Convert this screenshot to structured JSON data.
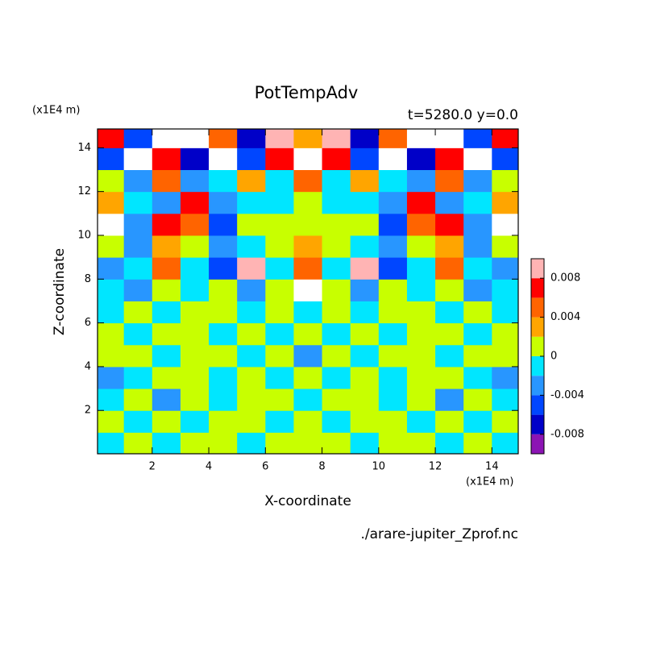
{
  "chart_data": {
    "type": "contour",
    "title": "PotTempAdv",
    "subtitle": "t=5280.0 y=0.0",
    "x_label": "X-coordinate",
    "y_label": "Z-coordinate",
    "x_unit": "(x1E4 m)",
    "y_unit": "(x1E4 m)",
    "source": "./arare-jupiter_Zprof.nc",
    "xlim": [
      0.07,
      14.93
    ],
    "ylim": [
      0.02,
      14.86
    ],
    "xticks": [
      2,
      4,
      6,
      8,
      10,
      12,
      14
    ],
    "yticks": [
      2,
      4,
      6,
      8,
      10,
      12,
      14
    ],
    "x": [
      0.5,
      1.5,
      2.5,
      3.5,
      4.5,
      5.5,
      6.5,
      7.5,
      8.5,
      9.5,
      10.5,
      11.5,
      12.5,
      13.5,
      14.5
    ],
    "y": [
      0.5,
      1.5,
      2.5,
      3.5,
      4.5,
      5.5,
      6.5,
      7.5,
      8.5,
      9.5,
      10.5,
      11.5,
      12.5,
      13.5,
      14.5
    ],
    "values": [
      [
        -0.001,
        0.001,
        -0.001,
        0.001,
        0.001,
        -0.001,
        0.001,
        0.001,
        0.001,
        -0.001,
        0.001,
        0.001,
        -0.001,
        0.001,
        -0.001
      ],
      [
        0.001,
        -0.001,
        0.001,
        -0.001,
        0.001,
        0.001,
        -0.001,
        0.001,
        -0.001,
        0.001,
        0.001,
        -0.001,
        0.001,
        -0.001,
        0.001
      ],
      [
        -0.001,
        0.001,
        -0.003,
        0.001,
        -0.001,
        0.001,
        0.001,
        -0.001,
        0.001,
        0.001,
        -0.001,
        0.001,
        -0.003,
        0.001,
        -0.001
      ],
      [
        -0.003,
        -0.001,
        0.001,
        0.001,
        -0.001,
        0.001,
        -0.001,
        0.001,
        -0.001,
        0.001,
        -0.001,
        0.001,
        0.001,
        -0.001,
        -0.003
      ],
      [
        0.001,
        0.001,
        -0.001,
        0.001,
        0.001,
        -0.001,
        0.001,
        -0.003,
        0.001,
        -0.001,
        0.001,
        0.001,
        -0.001,
        0.001,
        0.001
      ],
      [
        0.001,
        -0.001,
        0.001,
        0.001,
        -0.001,
        0.001,
        -0.001,
        0.001,
        -0.001,
        0.001,
        -0.001,
        0.001,
        0.001,
        -0.001,
        0.001
      ],
      [
        -0.001,
        0.001,
        -0.001,
        0.001,
        0.001,
        -0.001,
        0.001,
        -0.001,
        0.001,
        -0.001,
        0.001,
        0.001,
        -0.001,
        0.001,
        -0.001
      ],
      [
        -0.001,
        -0.003,
        0.001,
        -0.001,
        0.001,
        -0.003,
        0.001,
        0.012,
        0.001,
        -0.003,
        0.001,
        -0.001,
        0.001,
        -0.003,
        -0.001
      ],
      [
        -0.003,
        -0.001,
        0.005,
        -0.001,
        -0.005,
        0.009,
        -0.001,
        0.005,
        -0.001,
        0.009,
        -0.005,
        -0.001,
        0.005,
        -0.001,
        -0.003
      ],
      [
        0.001,
        -0.003,
        0.003,
        0.001,
        -0.003,
        -0.001,
        0.001,
        0.003,
        0.001,
        -0.001,
        -0.003,
        0.001,
        0.003,
        -0.003,
        0.001
      ],
      [
        0.012,
        -0.003,
        0.007,
        0.005,
        -0.005,
        0.001,
        0.001,
        0.001,
        0.001,
        0.001,
        -0.005,
        0.005,
        0.007,
        -0.003,
        0.012
      ],
      [
        0.003,
        -0.001,
        -0.003,
        0.007,
        -0.003,
        -0.001,
        -0.001,
        0.001,
        -0.001,
        -0.001,
        -0.003,
        0.007,
        -0.003,
        -0.001,
        0.003
      ],
      [
        0.001,
        -0.003,
        0.005,
        -0.003,
        -0.001,
        0.003,
        -0.001,
        0.005,
        -0.001,
        0.003,
        -0.001,
        -0.003,
        0.005,
        -0.003,
        0.001
      ],
      [
        -0.005,
        0.012,
        0.007,
        -0.007,
        0.012,
        -0.005,
        0.007,
        0.012,
        0.007,
        -0.005,
        0.012,
        -0.007,
        0.007,
        0.012,
        -0.005
      ],
      [
        0.007,
        -0.005,
        0.012,
        0.012,
        0.005,
        -0.007,
        0.009,
        0.003,
        0.009,
        -0.007,
        0.005,
        0.012,
        0.012,
        -0.005,
        0.007
      ]
    ],
    "levels": [
      -0.01,
      -0.008,
      -0.006,
      -0.004,
      -0.002,
      0,
      0.002,
      0.004,
      0.006,
      0.008,
      0.01
    ],
    "colors": [
      "#8c14b4",
      "#0000c8",
      "#0046ff",
      "#2896ff",
      "#00e6ff",
      "#c8ff00",
      "#ffa500",
      "#ff6400",
      "#ff0000",
      "#ffb4b4"
    ],
    "over_color": "#ffffff",
    "colorbar_ticks": [
      -0.008,
      -0.004,
      0,
      0.004,
      0.008
    ]
  }
}
